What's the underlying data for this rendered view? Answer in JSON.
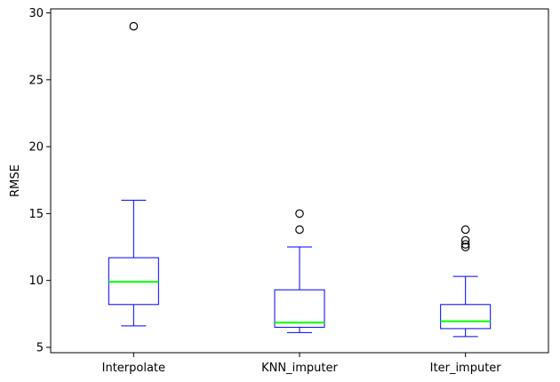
{
  "chart_data": {
    "type": "box",
    "ylabel": "RMSE",
    "xlabel": "",
    "title": "",
    "ylim": [
      4.6,
      30.3
    ],
    "yticks": [
      5,
      10,
      15,
      20,
      25,
      30
    ],
    "grid": false,
    "categories": [
      "Interpolate",
      "KNN_imputer",
      "Iter_imputer"
    ],
    "boxes": [
      {
        "category": "Interpolate",
        "whisker_low": 6.6,
        "q1": 8.2,
        "median": 9.9,
        "q3": 11.7,
        "whisker_high": 16.0,
        "outliers": [
          29.0
        ]
      },
      {
        "category": "KNN_imputer",
        "whisker_low": 6.1,
        "q1": 6.5,
        "median": 6.85,
        "q3": 9.3,
        "whisker_high": 12.5,
        "outliers": [
          15.0,
          13.8
        ]
      },
      {
        "category": "Iter_imputer",
        "whisker_low": 5.8,
        "q1": 6.4,
        "median": 6.95,
        "q3": 8.2,
        "whisker_high": 10.3,
        "outliers": [
          13.8,
          13.0,
          12.7,
          12.5
        ]
      }
    ],
    "colors": {
      "box": "#0000ff",
      "median": "#00ff00",
      "outlier": "#000000"
    }
  }
}
